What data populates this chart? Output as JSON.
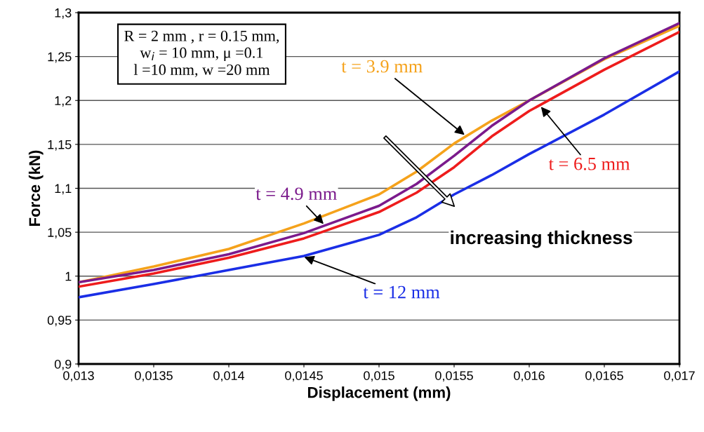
{
  "chart_data": {
    "type": "line",
    "xlabel": "Displacement (mm)",
    "ylabel": "Force (kN)",
    "x": [
      0.013,
      0.0135,
      0.014,
      0.0145,
      0.015,
      0.01525,
      0.0155,
      0.01575,
      0.016,
      0.0165,
      0.017
    ],
    "series": [
      {
        "name": "t = 3.9 mm",
        "color": "#f5a21b",
        "values": [
          0.993,
          1.011,
          1.031,
          1.06,
          1.093,
          1.119,
          1.151,
          1.177,
          1.2,
          1.247,
          1.285
        ]
      },
      {
        "name": "t = 4.9 mm",
        "color": "#7b1a8c",
        "values": [
          0.993,
          1.007,
          1.025,
          1.049,
          1.08,
          1.105,
          1.137,
          1.171,
          1.2,
          1.248,
          1.288
        ]
      },
      {
        "name": "t = 6.5 mm",
        "color": "#ee1c1c",
        "values": [
          0.988,
          1.003,
          1.021,
          1.043,
          1.073,
          1.095,
          1.124,
          1.159,
          1.188,
          1.235,
          1.278
        ]
      },
      {
        "name": "t = 12 mm",
        "color": "#1a2ee6",
        "values": [
          0.976,
          0.991,
          1.007,
          1.023,
          1.047,
          1.067,
          1.093,
          1.115,
          1.139,
          1.184,
          1.233
        ]
      }
    ],
    "xlim": [
      0.013,
      0.017
    ],
    "xticks": [
      {
        "value": 0.013,
        "label": "0,013"
      },
      {
        "value": 0.0135,
        "label": "0,0135"
      },
      {
        "value": 0.014,
        "label": "0,014"
      },
      {
        "value": 0.0145,
        "label": "0,0145"
      },
      {
        "value": 0.015,
        "label": "0,015"
      },
      {
        "value": 0.0155,
        "label": "0,0155"
      },
      {
        "value": 0.016,
        "label": "0,016"
      },
      {
        "value": 0.0165,
        "label": "0,0165"
      },
      {
        "value": 0.017,
        "label": "0,017"
      }
    ],
    "ylim": [
      0.9,
      1.3
    ],
    "yticks": [
      {
        "value": 0.9,
        "label": "0,9"
      },
      {
        "value": 0.95,
        "label": "0,95"
      },
      {
        "value": 1,
        "label": "1"
      },
      {
        "value": 1.05,
        "label": "1,05"
      },
      {
        "value": 1.1,
        "label": "1,1"
      },
      {
        "value": 1.15,
        "label": "1,15"
      },
      {
        "value": 1.2,
        "label": "1,2"
      },
      {
        "value": 1.25,
        "label": "1,25"
      },
      {
        "value": 1.3,
        "label": "1,3"
      }
    ],
    "grid": "y",
    "legend": false,
    "marker": "none",
    "line_style": "solid",
    "annotations": [
      "R = 2 mm , r = 0.15 mm,\nw$_{i}$ = 10 mm, μ =0.1\nl =10 mm, w =20 mm",
      "increasing thickness"
    ]
  }
}
